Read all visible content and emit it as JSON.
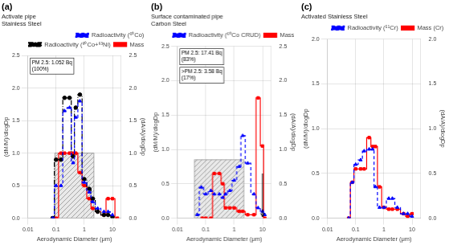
{
  "chart_data": [
    {
      "type": "step",
      "title": "(a)",
      "subtitle": [
        "Activate pipe",
        "Stainless Steel"
      ],
      "x_label": "Aerodynamic Diameter (μm)",
      "y_label": "(dM/M)/dlogDp",
      "y2_label": "(dA/A)/dlogDp",
      "log": "x",
      "xlim": [
        0.01,
        20
      ],
      "xticks": [
        0.01,
        0.1,
        1,
        10
      ],
      "ylim": [
        0,
        2.5
      ],
      "yticks": [
        {
          "value": 0,
          "label": "0.0"
        },
        0.5,
        {
          "value": 1,
          "label": "1.0"
        },
        1.5,
        {
          "value": 2,
          "label": "2.0"
        },
        2.5
      ],
      "y2lim": [
        0,
        2.5
      ],
      "y2ticks": [
        {
          "value": 0,
          "label": "0.0"
        },
        0.5,
        {
          "value": 1,
          "label": "1.0"
        },
        1.5,
        {
          "value": 2,
          "label": "2.0"
        },
        2.5
      ],
      "grid": true,
      "legend": "upper right",
      "series": [
        {
          "name": "Radioactivity (⁶⁰Co)",
          "axis": "y2",
          "color": "blue",
          "line_style": "dashed",
          "marker": "triangle",
          "x": [
            0.075,
            0.1,
            0.15,
            0.2,
            0.3,
            0.4,
            0.5,
            0.7,
            1.0,
            1.5,
            2.0,
            3.0,
            5.0,
            7.0,
            10.0
          ],
          "values": [
            0.0,
            0.5,
            0.5,
            1.65,
            1.7,
            0.85,
            1.55,
            1.8,
            0.55,
            0.4,
            0.25,
            0.15,
            0.1,
            0.1,
            0.05
          ]
        },
        {
          "name": "Radioactivity (⁶⁰Co+⁶³Ni)",
          "axis": "y2",
          "color": "black",
          "line_style": "dashdot",
          "marker": "circle",
          "x": [
            0.075,
            0.1,
            0.15,
            0.2,
            0.3,
            0.4,
            0.5,
            0.7,
            1.0,
            1.5,
            2.0,
            3.0,
            5.0,
            7.0,
            10.0
          ],
          "values": [
            0.0,
            0.9,
            0.9,
            1.85,
            1.85,
            0.95,
            1.7,
            1.9,
            0.6,
            0.45,
            0.3,
            0.1,
            0.05,
            0.05,
            0.02
          ]
        },
        {
          "name": "Mass",
          "axis": "y",
          "color": "red",
          "line_style": "solid",
          "marker": "square",
          "x": [
            0.075,
            0.1,
            0.15,
            0.2,
            0.3,
            0.4,
            0.5,
            0.7,
            1.0,
            1.5,
            2.0,
            3.0,
            5.0,
            7.0,
            10.0,
            15.0
          ],
          "values": [
            0.0,
            0.0,
            1.0,
            1.0,
            1.0,
            1.0,
            1.0,
            0.7,
            0.5,
            0.3,
            0.15,
            0.1,
            0.05,
            0.3,
            0.3,
            0.0
          ]
        }
      ],
      "shaded_regions": [
        {
          "x": [
            0.09,
            2.2
          ],
          "y": [
            0.0,
            1.0
          ]
        }
      ],
      "annotations": [
        {
          "text": [
            "PM 2.5: 1.052 Bq",
            "(100%)"
          ]
        }
      ]
    },
    {
      "type": "step",
      "title": "(b)",
      "subtitle": [
        "Surface contaminated pipe",
        "Carbon Steel"
      ],
      "x_label": "Aerodynamic Diameter (μm)",
      "y_label": "(dM/M)/dlogDp",
      "y2_label": "(dA/A)/dlogDp",
      "log": "x",
      "xlim": [
        0.01,
        20
      ],
      "xticks": [
        0.01,
        0.1,
        1,
        10
      ],
      "ylim": [
        0,
        2.5
      ],
      "yticks": [
        {
          "value": 0,
          "label": "0.0"
        },
        0.5,
        {
          "value": 1,
          "label": "1.0"
        },
        1.5,
        {
          "value": 2,
          "label": "2.0"
        },
        2.5
      ],
      "y2lim": [
        0,
        2.5
      ],
      "y2ticks": [
        {
          "value": 0,
          "label": "0.0"
        },
        0.5,
        {
          "value": 1,
          "label": "1.0"
        },
        1.5,
        {
          "value": 2,
          "label": "2.0"
        },
        2.5
      ],
      "grid": true,
      "legend": "upper right",
      "series": [
        {
          "name": "Radioactivity (⁶⁰Co CRUD)",
          "axis": "y2",
          "color": "blue",
          "line_style": "dashed",
          "marker": "triangle",
          "x": [
            0.05,
            0.07,
            0.1,
            0.15,
            0.2,
            0.3,
            0.4,
            0.5,
            0.7,
            1.0,
            1.5,
            2.0,
            3.0,
            5.0,
            7.0,
            10.0,
            12.0
          ],
          "values": [
            0.05,
            0.45,
            0.35,
            0.4,
            0.35,
            0.35,
            0.3,
            0.35,
            0.4,
            0.55,
            0.75,
            1.2,
            0.8,
            0.35,
            0.15,
            0.1,
            0.05
          ]
        },
        {
          "name": "Mass",
          "axis": "y",
          "color": "red",
          "line_style": "solid",
          "marker": "square",
          "x": [
            0.075,
            0.1,
            0.15,
            0.2,
            0.3,
            0.4,
            0.5,
            0.7,
            1.0,
            1.5,
            2.0,
            3.0,
            5.0,
            7.0,
            10.0,
            12.0
          ],
          "values": [
            0.0,
            0.0,
            0.0,
            0.65,
            0.65,
            0.5,
            0.15,
            0.15,
            0.15,
            0.1,
            0.1,
            0.05,
            0.05,
            1.75,
            1.05,
            0.0
          ]
        }
      ],
      "shaded_regions": [
        {
          "x": [
            0.04,
            2.2
          ],
          "y": [
            0.0,
            0.85
          ]
        }
      ],
      "annotations": [
        {
          "text": [
            "PM 2.5: 17.41 Bq",
            "(83%)"
          ]
        },
        {
          "text": [
            ">PM 2.5: 3.58 Bq",
            "(17%)"
          ]
        }
      ],
      "arrows": [
        {
          "x": [
            10,
            10
          ],
          "y": [
            0.65,
            0.02
          ]
        }
      ]
    },
    {
      "type": "step",
      "title": "(c)",
      "subtitle": [
        "Activated Stainless Steel"
      ],
      "x_label": "Aerodynamic Diameter (μm)",
      "y_label": "(dM/M)/dlogDp",
      "y2_label": "(dA/A)/dlogDp",
      "log": "x",
      "xlim": [
        0.01,
        20
      ],
      "xticks": [
        0.01,
        0.1,
        1,
        10
      ],
      "ylim": [
        0,
        2.0
      ],
      "yticks": [
        {
          "value": 0,
          "label": "0.0"
        },
        0.5,
        {
          "value": 1,
          "label": "1.0"
        },
        1.5,
        {
          "value": 2,
          "label": "2.0"
        }
      ],
      "y2lim": [
        0,
        2.0
      ],
      "y2ticks": [
        {
          "value": 0,
          "label": "0.0"
        },
        0.5,
        {
          "value": 1,
          "label": "1.0"
        },
        1.5,
        {
          "value": 2,
          "label": "2.0"
        }
      ],
      "grid": true,
      "legend": "upper right",
      "series": [
        {
          "name": "Radioactivity (⁵¹Cr)",
          "axis": "y2",
          "color": "blue",
          "line_style": "dashed",
          "marker": "triangle",
          "x": [
            0.056,
            0.075,
            0.1,
            0.15,
            0.2,
            0.3,
            0.4,
            0.5,
            0.7,
            1.0,
            1.5,
            2.0,
            3.0,
            5.0,
            7.0,
            10.0
          ],
          "values": [
            0.0,
            0.4,
            0.6,
            0.65,
            0.75,
            0.77,
            0.77,
            0.35,
            0.12,
            0.12,
            0.22,
            0.22,
            0.12,
            0.05,
            0.05,
            0.02
          ]
        },
        {
          "name": "Mass (Cr)",
          "axis": "y",
          "color": "red",
          "line_style": "solid",
          "marker": "square",
          "x": [
            0.056,
            0.075,
            0.1,
            0.15,
            0.2,
            0.3,
            0.4,
            0.5,
            0.7,
            1.0,
            1.5,
            2.0,
            3.0,
            5.0,
            7.0,
            10.0
          ],
          "values": [
            0.0,
            0.4,
            0.55,
            0.55,
            0.55,
            0.9,
            0.8,
            0.8,
            0.35,
            0.12,
            0.1,
            0.1,
            0.1,
            0.05,
            0.02,
            0.05
          ]
        }
      ]
    }
  ]
}
